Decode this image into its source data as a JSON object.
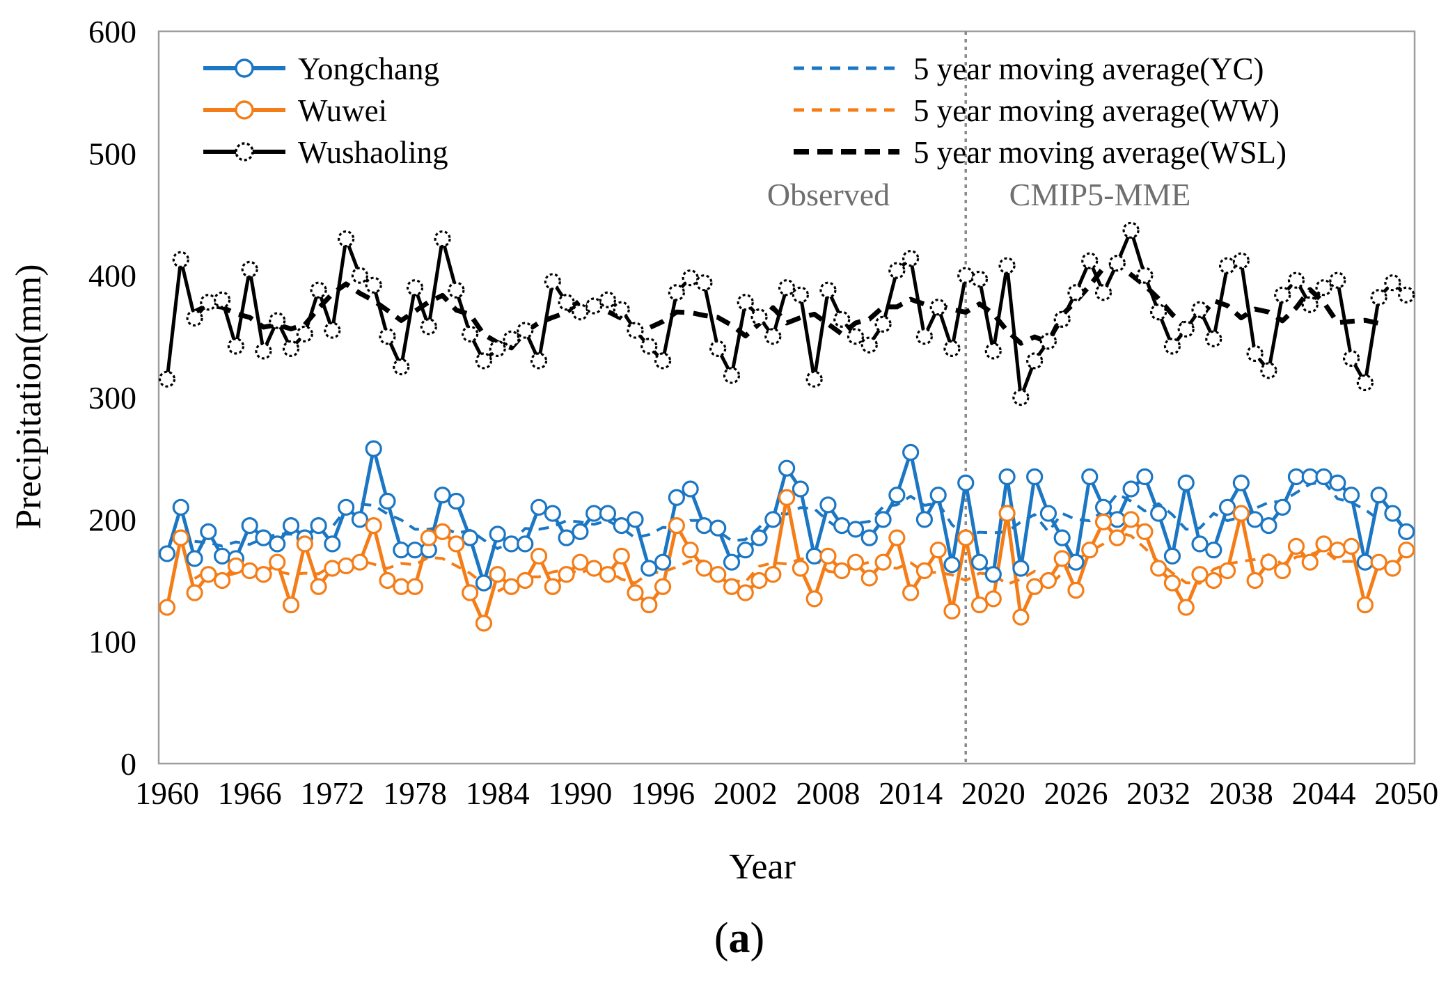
{
  "figure": {
    "caption_parts": [
      "(",
      "a",
      ")"
    ],
    "region_labels": {
      "left": "Observed",
      "right": "CMIP5-MME"
    },
    "colors": {
      "yongchang": "#1b76c3",
      "wuwei": "#f57d17",
      "wushaoling": "#000000",
      "divider": "#8a8a8a",
      "region_label": "#6f6f6f",
      "axis_border": "#9e9e9e"
    }
  },
  "chart_data": {
    "type": "line",
    "title": "",
    "xlabel": "Year",
    "ylabel": "Precipitation(mm)",
    "xlim": [
      1959.5,
      2050.6
    ],
    "ylim": [
      0,
      600
    ],
    "y_ticks": [
      0,
      100,
      200,
      300,
      400,
      500,
      600
    ],
    "x_tick_labels": [
      1960,
      1966,
      1972,
      1978,
      1984,
      1990,
      1996,
      2002,
      2008,
      2014,
      2020,
      2026,
      2032,
      2038,
      2044,
      2050
    ],
    "grid": false,
    "divider_x": 2018,
    "years": [
      1960,
      1961,
      1962,
      1963,
      1964,
      1965,
      1966,
      1967,
      1968,
      1969,
      1970,
      1971,
      1972,
      1973,
      1974,
      1975,
      1976,
      1977,
      1978,
      1979,
      1980,
      1981,
      1982,
      1983,
      1984,
      1985,
      1986,
      1987,
      1988,
      1989,
      1990,
      1991,
      1992,
      1993,
      1994,
      1995,
      1996,
      1997,
      1998,
      1999,
      2000,
      2001,
      2002,
      2003,
      2004,
      2005,
      2006,
      2007,
      2008,
      2009,
      2010,
      2011,
      2012,
      2013,
      2014,
      2015,
      2016,
      2017,
      2018,
      2019,
      2020,
      2021,
      2022,
      2023,
      2024,
      2025,
      2026,
      2027,
      2028,
      2029,
      2030,
      2031,
      2032,
      2033,
      2034,
      2035,
      2036,
      2037,
      2038,
      2039,
      2040,
      2041,
      2042,
      2043,
      2044,
      2045,
      2046,
      2047,
      2048,
      2049,
      2050
    ],
    "series": [
      {
        "name": "Yongchang",
        "short": "YC",
        "color": "#1b76c3",
        "line_style": "solid",
        "marker": "open-circle",
        "values": [
          172,
          210,
          168,
          190,
          170,
          168,
          195,
          185,
          180,
          195,
          185,
          195,
          180,
          210,
          200,
          258,
          215,
          175,
          175,
          175,
          220,
          215,
          185,
          148,
          188,
          180,
          180,
          210,
          205,
          185,
          190,
          205,
          205,
          195,
          200,
          160,
          165,
          218,
          225,
          195,
          193,
          165,
          175,
          185,
          200,
          242,
          225,
          170,
          212,
          195,
          192,
          185,
          200,
          220,
          255,
          200,
          220,
          163,
          230,
          165,
          155,
          235,
          160,
          235,
          205,
          185,
          165,
          235,
          210,
          200,
          225,
          235,
          205,
          170,
          230,
          180,
          175,
          210,
          230,
          200,
          195,
          210,
          235,
          235,
          235,
          230,
          220,
          165,
          220,
          205,
          190
        ]
      },
      {
        "name": "Wuwei",
        "short": "WW",
        "color": "#f57d17",
        "line_style": "solid",
        "marker": "open-circle",
        "values": [
          128,
          185,
          140,
          155,
          150,
          162,
          158,
          155,
          165,
          130,
          180,
          145,
          160,
          162,
          165,
          195,
          150,
          145,
          145,
          185,
          190,
          180,
          140,
          115,
          155,
          145,
          150,
          170,
          145,
          155,
          165,
          160,
          155,
          170,
          140,
          130,
          145,
          195,
          175,
          160,
          155,
          145,
          140,
          150,
          155,
          218,
          160,
          135,
          170,
          158,
          165,
          152,
          165,
          185,
          140,
          158,
          175,
          125,
          185,
          130,
          135,
          205,
          120,
          145,
          150,
          168,
          142,
          175,
          198,
          185,
          200,
          190,
          160,
          148,
          128,
          155,
          150,
          158,
          205,
          150,
          165,
          158,
          178,
          165,
          180,
          175,
          178,
          130,
          165,
          160,
          175
        ]
      },
      {
        "name": "Wushaoling",
        "short": "WSL",
        "color": "#000000",
        "line_style": "solid",
        "marker": "open-circle-dotted",
        "values": [
          315,
          413,
          365,
          378,
          380,
          342,
          405,
          338,
          363,
          340,
          352,
          388,
          355,
          430,
          400,
          392,
          350,
          325,
          390,
          358,
          430,
          388,
          352,
          330,
          340,
          348,
          355,
          330,
          395,
          378,
          370,
          375,
          380,
          372,
          355,
          342,
          330,
          386,
          398,
          394,
          340,
          318,
          378,
          366,
          350,
          390,
          384,
          315,
          388,
          364,
          350,
          343,
          360,
          404,
          414,
          350,
          374,
          340,
          400,
          397,
          338,
          408,
          300,
          330,
          346,
          364,
          386,
          412,
          386,
          410,
          437,
          400,
          370,
          342,
          356,
          372,
          348,
          408,
          412,
          336,
          322,
          384,
          396,
          376,
          390,
          396,
          332,
          312,
          382,
          394,
          384
        ]
      }
    ],
    "moving_averages": [
      {
        "name": "5 year moving average(YC)",
        "source": "Yongchang",
        "window": 5,
        "color": "#1b76c3",
        "emphasis": false
      },
      {
        "name": "5 year moving average(WW)",
        "source": "Wuwei",
        "window": 5,
        "color": "#f57d17",
        "emphasis": false
      },
      {
        "name": "5 year moving average(WSL)",
        "source": "Wushaoling",
        "window": 5,
        "color": "#000000",
        "emphasis": true
      }
    ],
    "legend_position": "top-inside-two-columns"
  }
}
